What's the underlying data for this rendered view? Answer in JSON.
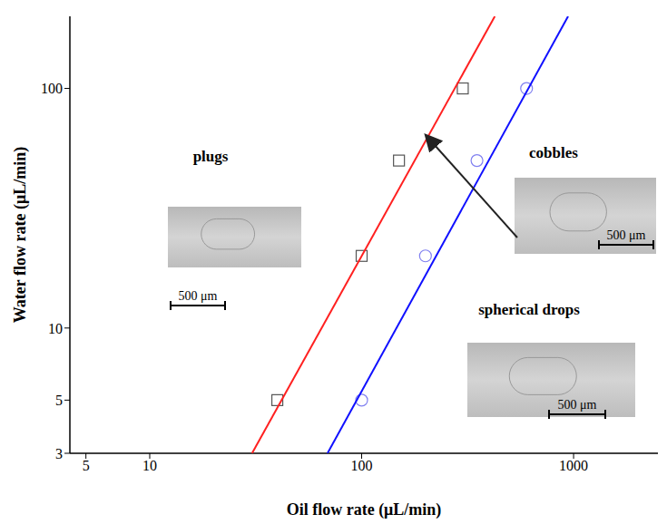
{
  "chart_data": {
    "type": "scatter",
    "x_label": "Oil flow rate (μL/min)",
    "y_label": "Water flow rate (μL/min)",
    "log": true,
    "xlim": [
      4.2,
      2500
    ],
    "ylim": [
      3,
      200
    ],
    "xticks": [
      5,
      10,
      100,
      1000
    ],
    "yticks": [
      3,
      5,
      10,
      100
    ],
    "series": [
      {
        "type": "scatter",
        "marker": "square",
        "color": "#555555",
        "x": [
          40,
          100,
          150,
          300
        ],
        "values": [
          5,
          20,
          50,
          100
        ]
      },
      {
        "type": "scatter",
        "marker": "circle",
        "color": "#8080f0",
        "x": [
          100,
          200,
          350,
          600
        ],
        "values": [
          5,
          20,
          50,
          100
        ]
      },
      {
        "type": "line",
        "color": "#ff2020",
        "x": [
          30.4,
          425
        ],
        "values": [
          3,
          200
        ]
      },
      {
        "type": "line",
        "color": "#1010ff",
        "x": [
          69,
          942
        ],
        "values": [
          3,
          200
        ]
      }
    ],
    "annotations": [
      {
        "text": "plugs",
        "scale_label": "500 μm"
      },
      {
        "text": "cobbles",
        "scale_label": "500 μm"
      },
      {
        "text": "spherical drops",
        "scale_label": "500 μm"
      }
    ]
  }
}
